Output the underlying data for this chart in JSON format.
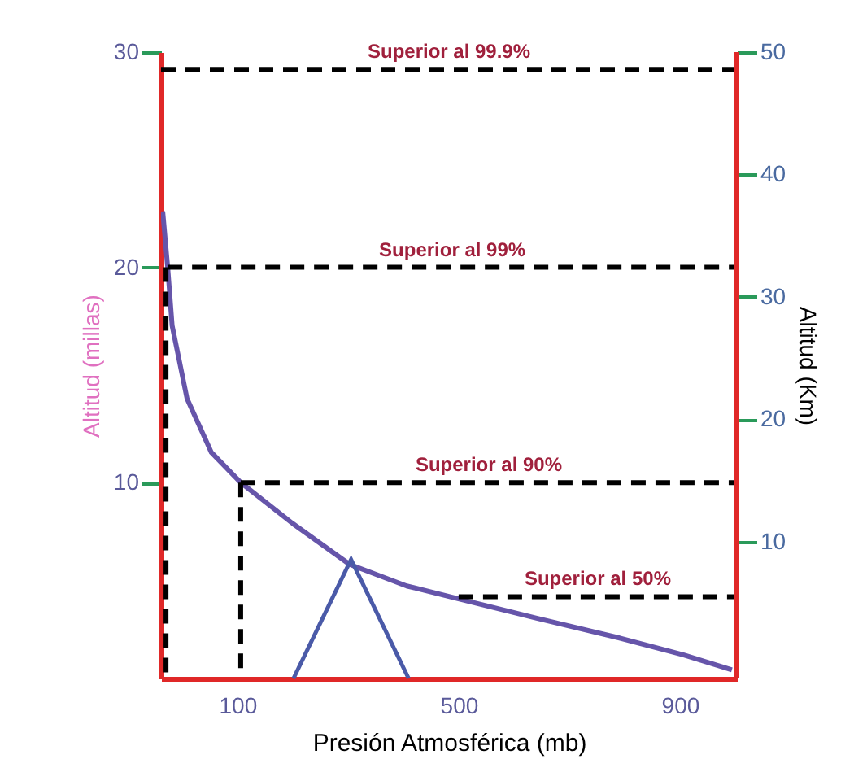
{
  "chart_data": {
    "type": "line",
    "xlabel": "Presión Atmosférica (mb)",
    "ylabel": "Altitud (millas)",
    "y2label": "Altitud (Km)",
    "xlim": [
      -38,
      1003
    ],
    "xticks": [
      100,
      500,
      900
    ],
    "ylim": [
      0.9,
      30
    ],
    "yticks": [
      10,
      20,
      30
    ],
    "y2lim": [
      -1.2,
      50
    ],
    "y2ticks": [
      10,
      20,
      30,
      40,
      50
    ],
    "series": [
      {
        "color": "#6655aa",
        "line_style": "solid",
        "x": [
          -35,
          -26,
          -18,
          9,
          53,
          106,
          200,
          303,
          406,
          500,
          641,
          788,
          906,
          994
        ],
        "values": [
          22.6,
          20,
          17.3,
          13.9,
          11.4,
          10,
          8.1,
          6.2,
          5.2,
          4.6,
          3.7,
          2.8,
          2.0,
          1.3
        ]
      },
      {
        "name": "Superior al 99.9%",
        "color": "#000000",
        "line_style": "dashed",
        "x": [
          -38,
          1003
        ],
        "values": [
          29.2,
          29.2
        ]
      },
      {
        "name": "Superior al 99%",
        "color": "#000000",
        "line_style": "dashed",
        "x": [
          -26,
          1003
        ],
        "values": [
          20,
          20
        ]
      },
      {
        "name": "Superior al 90%",
        "color": "#000000",
        "line_style": "dashed",
        "x": [
          106,
          1003
        ],
        "values": [
          10,
          10
        ]
      },
      {
        "name": "Superior al 50%",
        "color": "#000000",
        "line_style": "dashed",
        "x": [
          500,
          1003
        ],
        "values": [
          4.7,
          4.7
        ]
      },
      {
        "color": "#000000",
        "line_style": "dashed",
        "x": [
          106,
          106
        ],
        "values": [
          10,
          0.9
        ]
      },
      {
        "color": "#000000",
        "line_style": "dashed",
        "x": [
          -29,
          -29
        ],
        "values": [
          20,
          0.9
        ]
      }
    ]
  }
}
